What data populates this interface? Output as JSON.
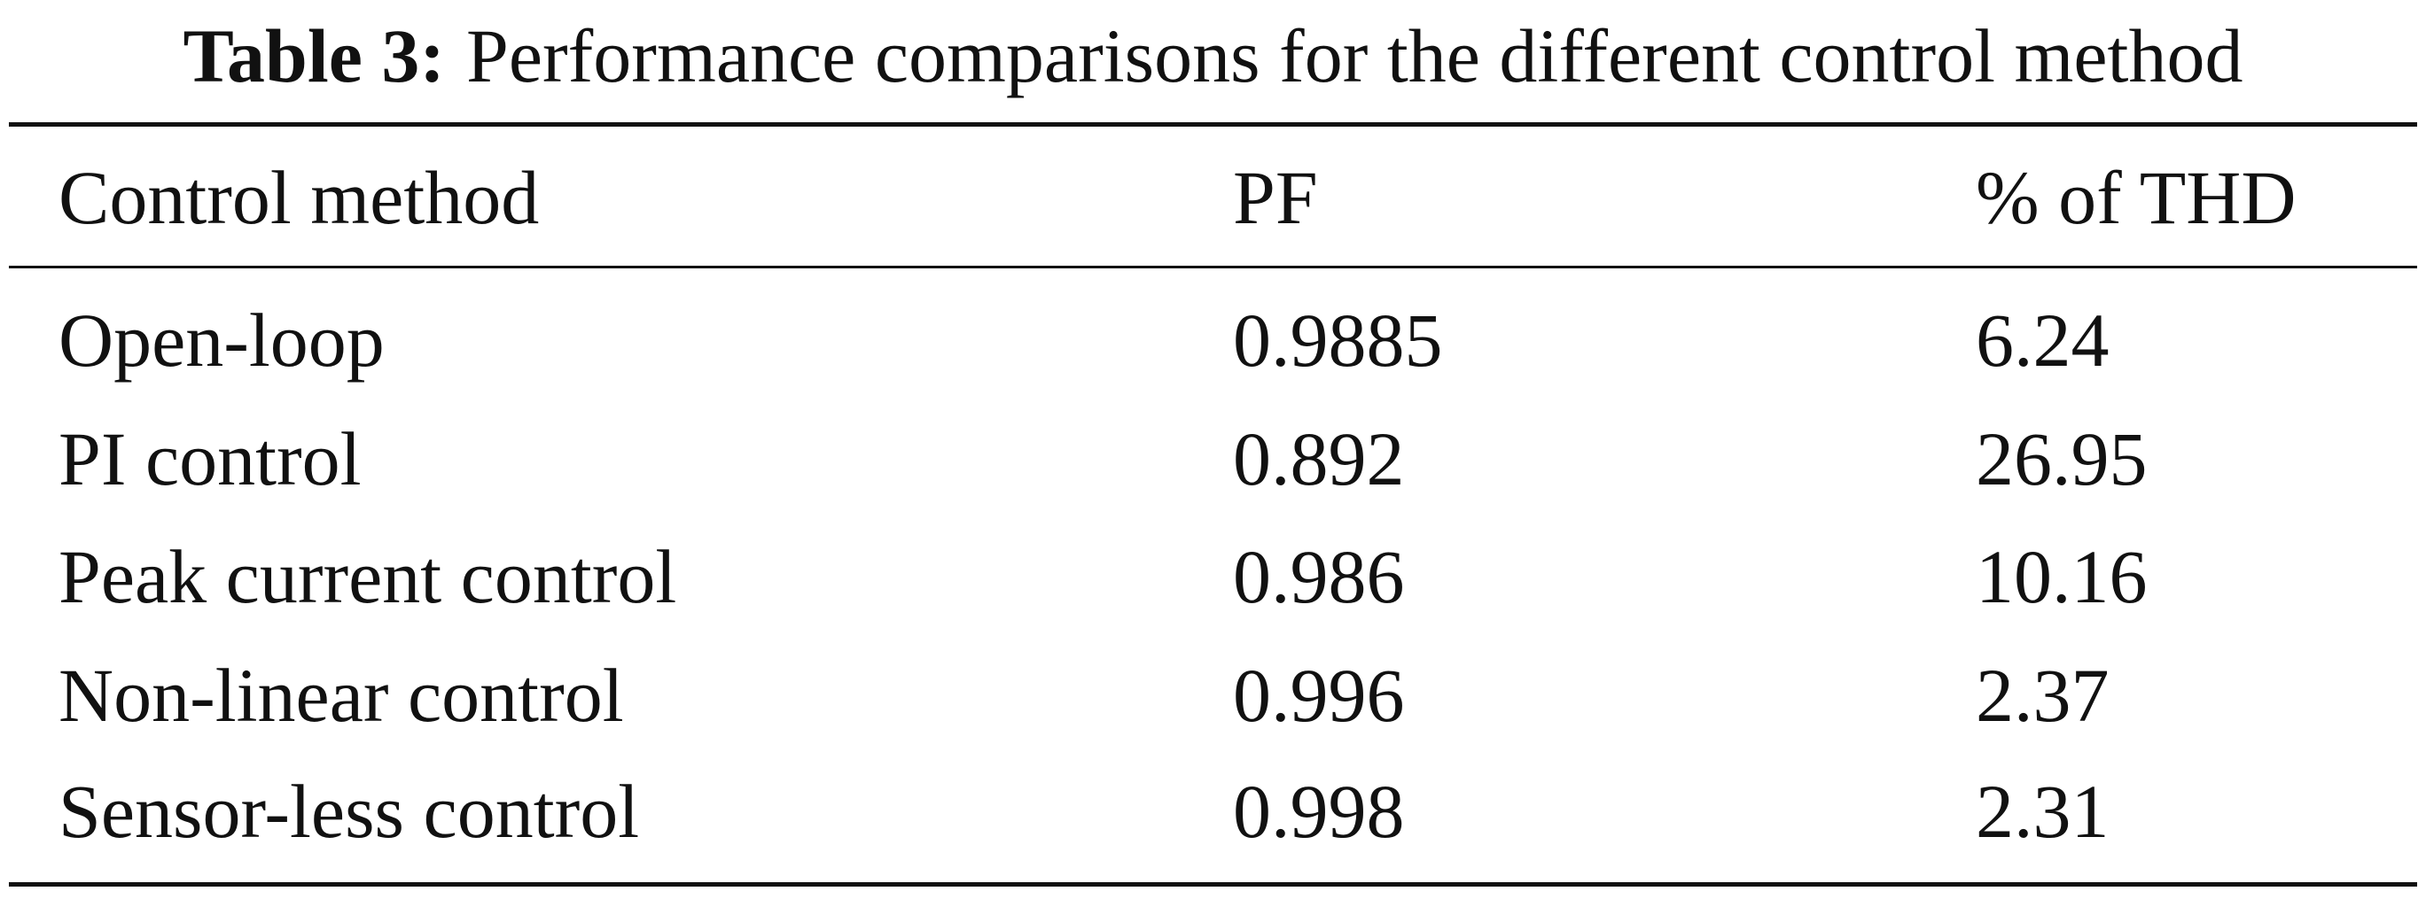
{
  "title": {
    "label": "Table 3:",
    "text": "Performance comparisons for the different control method"
  },
  "table": {
    "header": [
      "Control method",
      "PF",
      "% of THD"
    ],
    "rows": [
      [
        "Open-loop",
        "0.9885",
        "6.24"
      ],
      [
        "PI control",
        "0.892",
        "26.95"
      ],
      [
        "Peak current control",
        "0.986",
        "10.16"
      ],
      [
        "Non-linear control",
        "0.996",
        "2.37"
      ],
      [
        "Sensor-less control",
        "0.998",
        "2.31"
      ]
    ]
  }
}
